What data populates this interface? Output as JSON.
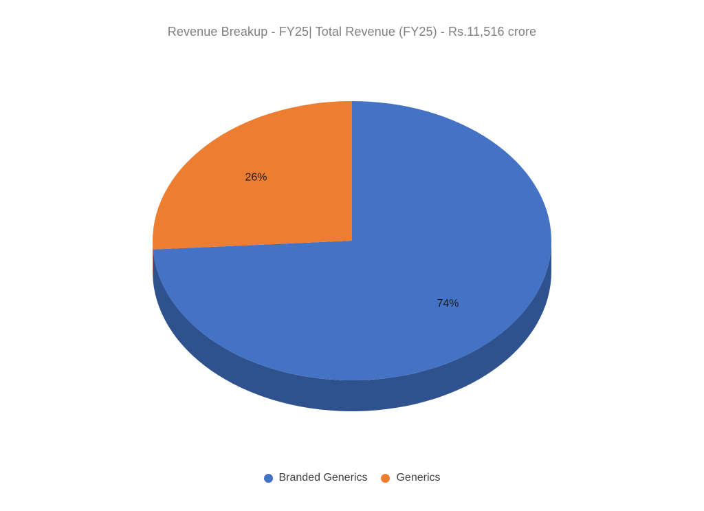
{
  "chart_data": {
    "type": "pie",
    "title": "Revenue Breakup - FY25| Total Revenue (FY25) - Rs.11,516 crore",
    "categories": [
      "Branded Generics",
      "Generics"
    ],
    "values": [
      74,
      26
    ],
    "labels": [
      "74%",
      "26%"
    ],
    "unit": "%",
    "legend_position": "bottom",
    "style": "3d",
    "colors": {
      "Branded Generics": "#4472c4",
      "Generics": "#ed7d31",
      "Branded Generics side": "#2f528f",
      "Generics side": "#b55a1c"
    }
  }
}
